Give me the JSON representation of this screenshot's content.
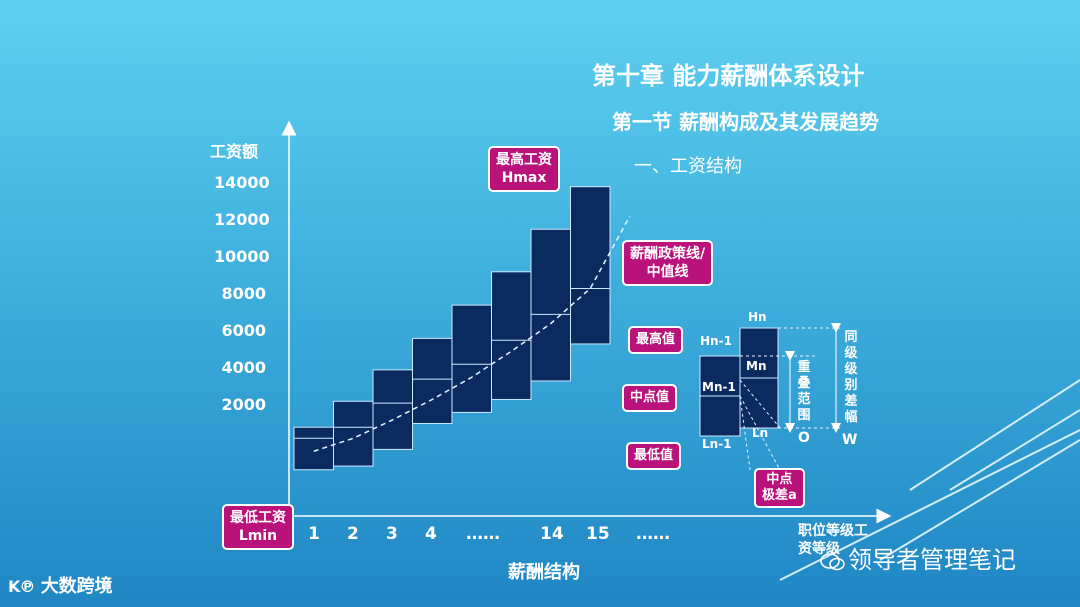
{
  "titles": {
    "chapter": "第十章 能力薪酬体系设计",
    "section": "第一节 薪酬构成及其发展趋势",
    "subsection": "一、工资结构"
  },
  "chart_data": {
    "type": "bar",
    "ylabel": "工资额",
    "xlabel": "薪酬结构",
    "x_axis_end_label": "职位等级工资等级",
    "y_ticks": [
      "14000",
      "12000",
      "10000",
      "8000",
      "6000",
      "4000",
      "2000"
    ],
    "x_ticks": [
      "1",
      "2",
      "3",
      "4",
      "……",
      "14",
      "15",
      "……"
    ],
    "ranges": [
      {
        "grade": "1",
        "min": -1500,
        "mid": 200,
        "max": 800
      },
      {
        "grade": "2",
        "min": -1300,
        "mid": 800,
        "max": 2200
      },
      {
        "grade": "3",
        "min": -400,
        "mid": 2100,
        "max": 3900
      },
      {
        "grade": "4",
        "min": 1000,
        "mid": 3400,
        "max": 5600
      },
      {
        "grade": "……",
        "min": 1600,
        "mid": 4200,
        "max": 7400
      },
      {
        "grade": "……",
        "min": 2300,
        "mid": 5500,
        "max": 9200
      },
      {
        "grade": "14",
        "min": 3300,
        "mid": 6900,
        "max": 11500
      },
      {
        "grade": "15",
        "min": 5300,
        "mid": 8300,
        "max": 13800
      }
    ],
    "policy_line": [
      [
        0,
        -500
      ],
      [
        1,
        200
      ],
      [
        2,
        1200
      ],
      [
        3,
        2300
      ],
      [
        4,
        3500
      ],
      [
        5,
        4900
      ],
      [
        6,
        6400
      ],
      [
        7,
        8300
      ],
      [
        8,
        12200
      ]
    ]
  },
  "callouts": {
    "hmax": [
      "最高工资",
      "Hmax"
    ],
    "lmin": [
      "最低工资",
      "Lmin"
    ],
    "policy": [
      "薪酬政策线/",
      "中值线"
    ],
    "max_value": "最高值",
    "mid_value": "中点值",
    "min_value": "最低值",
    "mid_diff": [
      "中点",
      "极差a"
    ]
  },
  "inset": {
    "hn": "Hn",
    "hn1": "Hn-1",
    "mn": "Mn",
    "mn1": "Mn-1",
    "ln1": "Ln-1",
    "ln": "Ln",
    "o": "O",
    "w": "W",
    "overlap": "重叠范围",
    "grade_diff": "同级级别差幅"
  },
  "watermark": "领导者管理笔记",
  "logo": "大数跨境"
}
